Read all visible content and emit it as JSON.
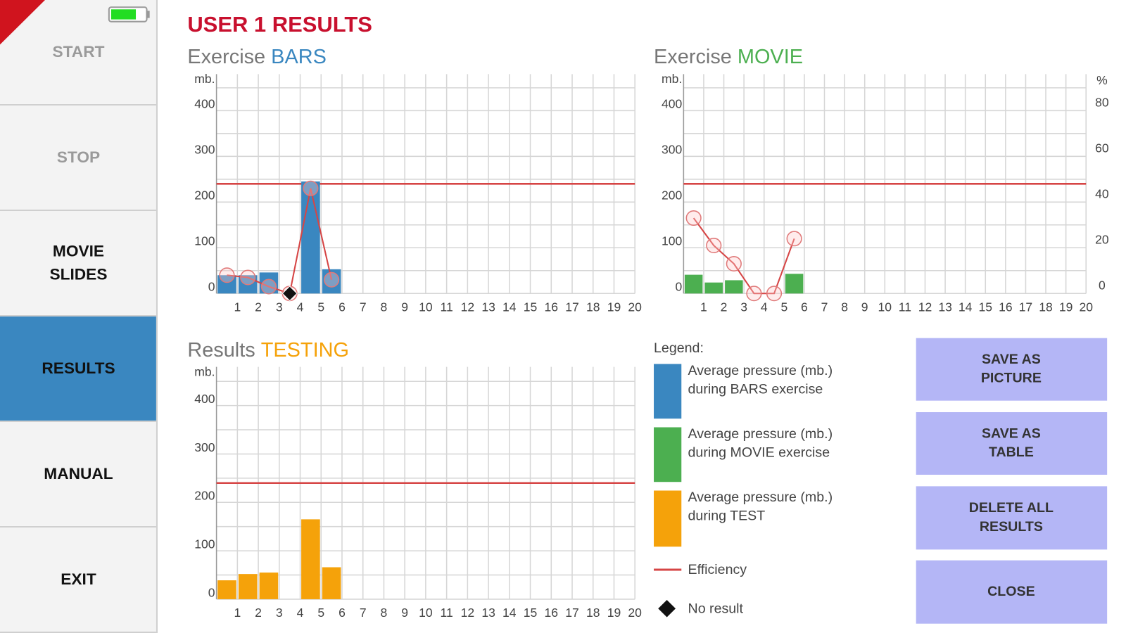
{
  "sidebar": [
    {
      "lines": [
        "START"
      ],
      "state": "disabled"
    },
    {
      "lines": [
        "STOP"
      ],
      "state": "disabled"
    },
    {
      "lines": [
        "MOVIE",
        "SLIDES"
      ],
      "state": "normal"
    },
    {
      "lines": [
        "RESULTS"
      ],
      "state": "active"
    },
    {
      "lines": [
        "MANUAL"
      ],
      "state": "normal"
    },
    {
      "lines": [
        "EXIT"
      ],
      "state": "normal"
    }
  ],
  "title": "USER 1 RESULTS",
  "charts": [
    {
      "type": "bar",
      "title_prefix": "Exercise ",
      "title_name": "BARS",
      "color": "#3a87c0",
      "y_unit": "mb.",
      "categories": [
        "1",
        "2",
        "3",
        "4",
        "5",
        "6",
        "7",
        "8",
        "9",
        "10",
        "11",
        "12",
        "13",
        "14",
        "15",
        "16",
        "17",
        "18",
        "19",
        "20"
      ],
      "values": [
        40,
        40,
        46,
        null,
        245,
        53,
        null,
        null,
        null,
        null,
        null,
        null,
        null,
        null,
        null,
        null,
        null,
        null,
        null,
        null
      ],
      "efficiency": [
        8,
        7,
        3,
        0,
        46,
        6,
        null,
        null,
        null,
        null,
        null,
        null,
        null,
        null,
        null,
        null,
        null,
        null,
        null,
        null
      ],
      "no_result": [
        false,
        false,
        false,
        true,
        false,
        false,
        false,
        false,
        false,
        false,
        false,
        false,
        false,
        false,
        false,
        false,
        false,
        false,
        false,
        false
      ],
      "threshold": 240,
      "ylim": [
        0,
        480
      ],
      "yticks": [
        0,
        100,
        200,
        300,
        400
      ],
      "ygrid": [
        0,
        50,
        100,
        150,
        200,
        250,
        300,
        350,
        400,
        450
      ],
      "y2lim": [
        0,
        96
      ]
    },
    {
      "type": "bar",
      "title_prefix": "Exercise ",
      "title_name": "MOVIE",
      "color": "#4caf50",
      "y_unit": "mb.",
      "y2_unit": "%",
      "categories": [
        "1",
        "2",
        "3",
        "4",
        "5",
        "6",
        "7",
        "8",
        "9",
        "10",
        "11",
        "12",
        "13",
        "14",
        "15",
        "16",
        "17",
        "18",
        "19",
        "20"
      ],
      "values": [
        41,
        24,
        29,
        null,
        null,
        43,
        null,
        null,
        null,
        null,
        null,
        null,
        null,
        null,
        null,
        null,
        null,
        null,
        null,
        null
      ],
      "efficiency": [
        33,
        21,
        13,
        0,
        0,
        24,
        null,
        null,
        null,
        null,
        null,
        null,
        null,
        null,
        null,
        null,
        null,
        null,
        null,
        null
      ],
      "threshold": 240,
      "ylim": [
        0,
        480
      ],
      "yticks": [
        0,
        100,
        200,
        300,
        400
      ],
      "ygrid": [
        0,
        50,
        100,
        150,
        200,
        250,
        300,
        350,
        400,
        450
      ],
      "y2lim": [
        0,
        96
      ],
      "y2ticks": [
        0,
        20,
        40,
        60,
        80
      ]
    },
    {
      "type": "bar",
      "title_prefix": "Results ",
      "title_name": "TESTING",
      "color": "#f5a20a",
      "y_unit": "mb.",
      "categories": [
        "1",
        "2",
        "3",
        "4",
        "5",
        "6",
        "7",
        "8",
        "9",
        "10",
        "11",
        "12",
        "13",
        "14",
        "15",
        "16",
        "17",
        "18",
        "19",
        "20"
      ],
      "values": [
        39,
        52,
        55,
        0,
        165,
        66,
        null,
        null,
        null,
        null,
        null,
        null,
        null,
        null,
        null,
        null,
        null,
        null,
        null,
        null
      ],
      "threshold": 240,
      "ylim": [
        0,
        480
      ],
      "yticks": [
        0,
        100,
        200,
        300,
        400
      ],
      "ygrid": [
        0,
        50,
        100,
        150,
        200,
        250,
        300,
        350,
        400,
        450
      ]
    }
  ],
  "legend": {
    "title": "Legend:",
    "items": [
      {
        "lines": [
          "Average pressure (mb.)",
          "during BARS exercise"
        ],
        "color": "#3a87c0"
      },
      {
        "lines": [
          "Average pressure (mb.)",
          "during MOVIE exercise"
        ],
        "color": "#4caf50"
      },
      {
        "lines": [
          "Average pressure (mb.)",
          "during TEST"
        ],
        "color": "#f5a20a"
      }
    ],
    "efficiency": "Efficiency",
    "no_result": "No result"
  },
  "buttons": [
    {
      "lines": [
        "SAVE AS",
        "PICTURE"
      ]
    },
    {
      "lines": [
        "SAVE AS",
        "TABLE"
      ]
    },
    {
      "lines": [
        "DELETE ALL",
        "RESULTS"
      ]
    },
    {
      "lines": [
        "CLOSE"
      ]
    }
  ]
}
